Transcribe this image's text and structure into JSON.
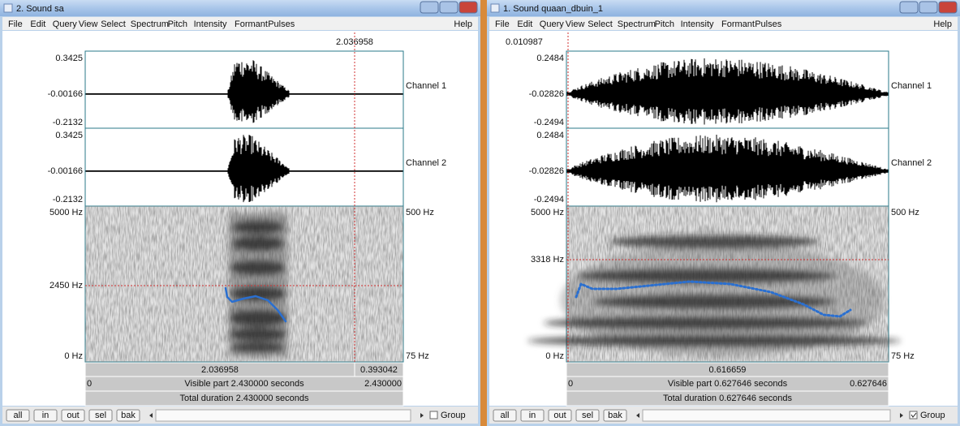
{
  "windows": [
    {
      "title": "2. Sound sa",
      "menu": [
        "File",
        "Edit",
        "Query",
        "View",
        "Select",
        "Spectrum",
        "Pitch",
        "Intensity",
        "Formant",
        "Pulses"
      ],
      "help": "Help",
      "cursor_time": "2.036958",
      "channels": [
        {
          "label": "Channel 1",
          "top": "0.3425",
          "middle": "-0.00166",
          "bottom": "-0.2132"
        },
        {
          "label": "Channel 2",
          "top": "0.3425",
          "middle": "-0.00166",
          "bottom": "-0.2132"
        }
      ],
      "spectrogram": {
        "top": "5000 Hz",
        "cursor": "2450 Hz",
        "bottom": "0 Hz",
        "pitch_top": "500 Hz",
        "pitch_bottom": "75 Hz"
      },
      "selection_bar": [
        "2.036958",
        "0.393042"
      ],
      "visible_bar": {
        "start": "0",
        "text": "Visible part 2.430000 seconds",
        "end": "2.430000"
      },
      "total_bar": "Total duration 2.430000 seconds",
      "buttons": [
        "all",
        "in",
        "out",
        "sel",
        "bak"
      ],
      "group": "Group"
    },
    {
      "title": "1. Sound quaan_dbuin_1",
      "menu": [
        "File",
        "Edit",
        "Query",
        "View",
        "Select",
        "Spectrum",
        "Pitch",
        "Intensity",
        "Formant",
        "Pulses"
      ],
      "help": "Help",
      "cursor_time": "0.010987",
      "channels": [
        {
          "label": "Channel 1",
          "top": "0.2484",
          "middle": "-0.02826",
          "bottom": "-0.2494"
        },
        {
          "label": "Channel 2",
          "top": "0.2484",
          "middle": "-0.02826",
          "bottom": "-0.2494"
        }
      ],
      "spectrogram": {
        "top": "5000 Hz",
        "cursor": "3318 Hz",
        "bottom": "0 Hz",
        "pitch_top": "500 Hz",
        "pitch_bottom": "75 Hz"
      },
      "selection_bar": [
        "0.616659"
      ],
      "visible_bar": {
        "start": "0",
        "text": "Visible part 0.627646 seconds",
        "end": "0.627646"
      },
      "total_bar": "Total duration 0.627646 seconds",
      "buttons": [
        "all",
        "in",
        "out",
        "sel",
        "bak"
      ],
      "group": "Group"
    }
  ]
}
